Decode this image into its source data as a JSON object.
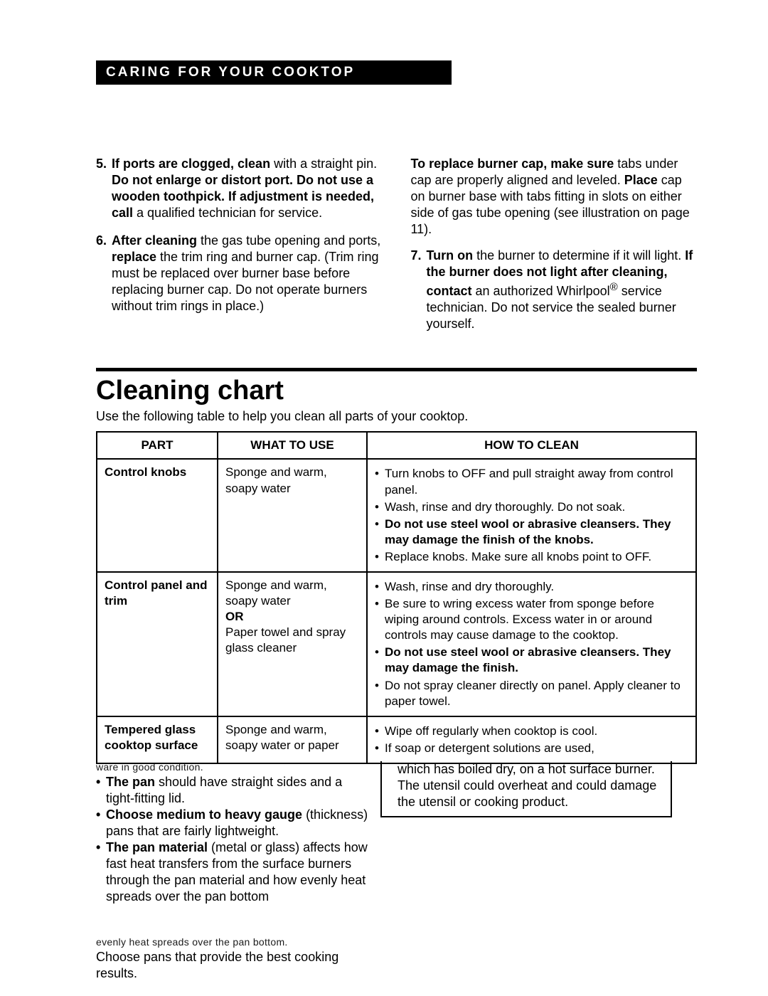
{
  "header": {
    "title": "CARING FOR YOUR COOKTOP"
  },
  "steps_left": [
    {
      "num": "5.",
      "html": "<span class='b'>If ports are clogged, clean</span> with a straight pin. <span class='b'>Do not enlarge or distort port. Do not use a wooden toothpick. If adjustment is needed, call</span> a qualified technician for service."
    },
    {
      "num": "6.",
      "html": "<span class='b'>After cleaning</span> the gas tube opening and ports, <span class='b'>replace</span> the trim ring and burner cap. (Trim ring must be replaced over burner base before replacing burner cap. Do not operate burners without trim rings in place.)"
    }
  ],
  "steps_right_intro": "<span class='b'>To replace burner cap, make sure</span> tabs under cap are properly aligned and leveled. <span class='b'>Place</span> cap on burner base with tabs fitting in slots on either side of gas tube opening (see illustration on page 11).",
  "steps_right": [
    {
      "num": "7.",
      "html": "<span class='b'>Turn on</span> the burner to determine if it will light. <span class='b'>If the burner does not light after cleaning, contact</span> an authorized Whirlpool<sup>®</sup> service technician. Do not service the sealed burner yourself."
    }
  ],
  "section": {
    "title": "Cleaning chart",
    "subtitle": "Use the following table to help you clean all parts of your cooktop."
  },
  "table": {
    "headers": [
      "PART",
      "WHAT TO USE",
      "HOW TO CLEAN"
    ],
    "rows": [
      {
        "part": "Control knobs",
        "use": "Sponge and warm, soapy water",
        "how": [
          "Turn knobs to OFF and pull straight away from control panel.",
          "Wash, rinse and dry thoroughly. Do not soak.",
          "<span class='b'>Do not use steel wool or abrasive cleansers. They may damage the finish of the knobs.</span>",
          "Replace knobs. Make sure all knobs point to OFF."
        ]
      },
      {
        "part": "Control panel and trim",
        "use": "Sponge and warm, soapy water<br><span class='b'>OR</span><br>Paper towel and spray glass cleaner",
        "how": [
          "Wash, rinse and dry thoroughly.",
          "Be sure to wring excess water from sponge before wiping around controls. Excess water in or around controls may cause damage to the cooktop.",
          "<span class='b'>Do not use steel wool or abrasive cleansers. They may damage the finish.</span>",
          "Do not spray cleaner directly on panel. Apply cleaner to paper towel."
        ]
      },
      {
        "part": "Tempered glass cooktop surface",
        "use": "Sponge and warm, soapy water or paper",
        "how": [
          "Wipe off regularly when cooktop is cool.",
          "If soap or detergent solutions are used,"
        ]
      }
    ]
  },
  "fragment": {
    "garble_top": "ware in good condition.",
    "left_bullets": [
      "<span class='b'>The pan</span> should have straight sides and a tight-fitting lid.",
      "<span class='b'>Choose medium to heavy gauge</span> (thickness) pans that are fairly lightweight.",
      "<span class='b'>The pan material</span> (metal or glass) affects how fast heat transfers from the surface burners through the pan material and how evenly heat spreads over the pan bottom"
    ],
    "right_lines": [
      "which has boiled dry, on a hot surface burner.",
      "The utensil could overheat and could damage the utensil or cooking product."
    ],
    "bottom_garble": "evenly heat spreads over the pan bottom.",
    "bottom_text": "Choose pans that provide the best cooking results."
  }
}
